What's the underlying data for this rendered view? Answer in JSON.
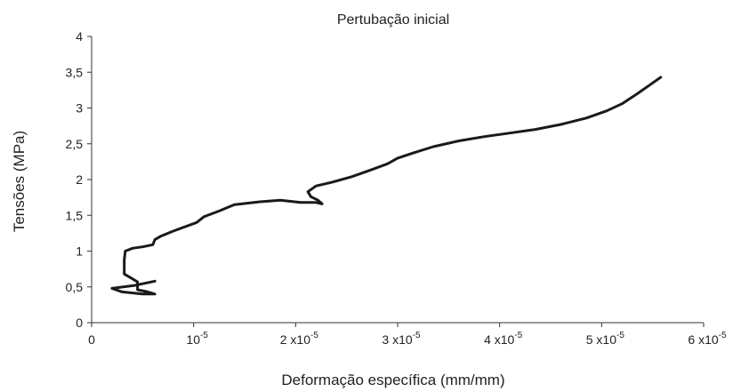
{
  "chart_data": {
    "type": "line",
    "title": "Pertubação inicial",
    "xlabel": "Deformação específica (mm/mm)",
    "ylabel": "Tensões (MPa)",
    "xlim": [
      0,
      6e-05
    ],
    "ylim": [
      0,
      4
    ],
    "grid": false,
    "legend": "none",
    "x_ticks": [
      {
        "value": 0,
        "label": "0"
      },
      {
        "value": 1e-05,
        "label": "10",
        "exp": "-5"
      },
      {
        "value": 2e-05,
        "label": "2 x10",
        "exp": "-5"
      },
      {
        "value": 3e-05,
        "label": "3 x10",
        "exp": "-5"
      },
      {
        "value": 4e-05,
        "label": "4 x10",
        "exp": "-5"
      },
      {
        "value": 5e-05,
        "label": "5 x10",
        "exp": "-5"
      },
      {
        "value": 6e-05,
        "label": "6 x10",
        "exp": "-5"
      }
    ],
    "y_ticks": [
      {
        "value": 0,
        "label": "0"
      },
      {
        "value": 0.5,
        "label": "0,5"
      },
      {
        "value": 1,
        "label": "1"
      },
      {
        "value": 1.5,
        "label": "1,5"
      },
      {
        "value": 2,
        "label": "2"
      },
      {
        "value": 2.5,
        "label": "2,5"
      },
      {
        "value": 3,
        "label": "3"
      },
      {
        "value": 3.5,
        "label": "3,5"
      },
      {
        "value": 4,
        "label": "4"
      }
    ],
    "series": [
      {
        "color": "#1a1a1a",
        "points": [
          [
            6.2e-06,
            0.58
          ],
          [
            4.2e-06,
            0.52
          ],
          [
            2e-06,
            0.48
          ],
          [
            3e-06,
            0.43
          ],
          [
            5e-06,
            0.4
          ],
          [
            6.2e-06,
            0.4
          ],
          [
            5.5e-06,
            0.43
          ],
          [
            4.5e-06,
            0.46
          ],
          [
            4.5e-06,
            0.57
          ],
          [
            3.8e-06,
            0.63
          ],
          [
            3.2e-06,
            0.68
          ],
          [
            3.2e-06,
            0.88
          ],
          [
            3.3e-06,
            1.0
          ],
          [
            4e-06,
            1.04
          ],
          [
            5e-06,
            1.06
          ],
          [
            6e-06,
            1.09
          ],
          [
            6.2e-06,
            1.16
          ],
          [
            6.8e-06,
            1.21
          ],
          [
            8e-06,
            1.28
          ],
          [
            1.03e-05,
            1.4
          ],
          [
            1.1e-05,
            1.48
          ],
          [
            1.25e-05,
            1.56
          ],
          [
            1.4e-05,
            1.65
          ],
          [
            1.65e-05,
            1.69
          ],
          [
            1.85e-05,
            1.71
          ],
          [
            2.05e-05,
            1.68
          ],
          [
            2.2e-05,
            1.68
          ],
          [
            2.26e-05,
            1.66
          ],
          [
            2.22e-05,
            1.71
          ],
          [
            2.15e-05,
            1.76
          ],
          [
            2.12e-05,
            1.83
          ],
          [
            2.2e-05,
            1.91
          ],
          [
            2.35e-05,
            1.96
          ],
          [
            2.55e-05,
            2.04
          ],
          [
            2.75e-05,
            2.14
          ],
          [
            2.9e-05,
            2.22
          ],
          [
            3e-05,
            2.3
          ],
          [
            3.15e-05,
            2.37
          ],
          [
            3.35e-05,
            2.46
          ],
          [
            3.6e-05,
            2.54
          ],
          [
            3.85e-05,
            2.6
          ],
          [
            4.1e-05,
            2.65
          ],
          [
            4.35e-05,
            2.7
          ],
          [
            4.6e-05,
            2.77
          ],
          [
            4.85e-05,
            2.86
          ],
          [
            5.05e-05,
            2.96
          ],
          [
            5.2e-05,
            3.06
          ],
          [
            5.35e-05,
            3.2
          ],
          [
            5.5e-05,
            3.35
          ],
          [
            5.58e-05,
            3.43
          ]
        ]
      }
    ]
  }
}
